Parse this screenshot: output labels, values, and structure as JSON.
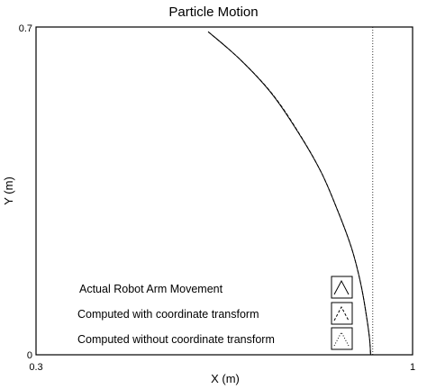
{
  "chart_data": {
    "type": "line",
    "title": "Particle Motion",
    "xlabel": "X (m)",
    "ylabel": "Y (m)",
    "xlim": [
      0.3,
      1
    ],
    "ylim": [
      0,
      0.7
    ],
    "x_tick_labels": [
      "0.3",
      "1"
    ],
    "y_tick_labels": [
      "0",
      "0.7"
    ],
    "grid": false,
    "legend_position": "bottom-right",
    "series": [
      {
        "name": "Actual Robot Arm Movement",
        "style": "solid",
        "x": [
          0.62,
          0.68,
          0.74,
          0.79,
          0.83,
          0.86,
          0.886,
          0.903,
          0.914,
          0.92,
          0.922
        ],
        "y": [
          0.69,
          0.63,
          0.555,
          0.47,
          0.39,
          0.31,
          0.23,
          0.155,
          0.085,
          0.035,
          0.0
        ]
      },
      {
        "name": "Computed with coordinate transform",
        "style": "dashed",
        "x": [
          0.62,
          0.68,
          0.74,
          0.79,
          0.83,
          0.86,
          0.886,
          0.903,
          0.914,
          0.92,
          0.922
        ],
        "y": [
          0.69,
          0.63,
          0.556,
          0.471,
          0.39,
          0.31,
          0.23,
          0.155,
          0.085,
          0.035,
          0.0
        ]
      },
      {
        "name": "Computed without coordinate transform",
        "style": "dotted",
        "x": [
          0.926,
          0.926
        ],
        "y": [
          0.0,
          0.7
        ]
      }
    ]
  }
}
